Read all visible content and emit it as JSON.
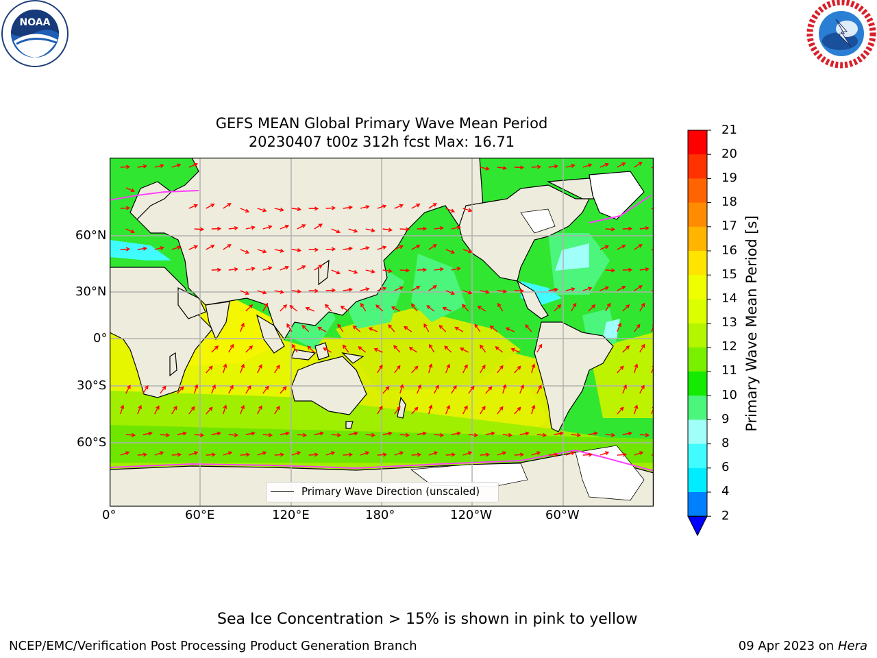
{
  "title": {
    "line1": "GEFS MEAN Global Primary Wave Mean Period",
    "line2": "20230407 t00z 312h fcst   Max: 16.71"
  },
  "logos": {
    "left": {
      "icon": "noaa-logo",
      "text": "NOAA"
    },
    "right": {
      "icon": "nws-logo"
    }
  },
  "map": {
    "ocean_color": "#31e631",
    "land_color": "#eeecdc",
    "ice_color": "#ffffff",
    "x_ticks": [
      "0°",
      "60°E",
      "120°E",
      "180°",
      "120°W",
      "60°W"
    ],
    "y_ticks": [
      "60°N",
      "30°N",
      "0°",
      "30°S",
      "60°S"
    ],
    "arrow_color": "#ff0000",
    "legend": "Primary Wave Direction (unscaled)"
  },
  "colorbar": {
    "label": "Primary Wave Mean Period [s]",
    "ticks": [
      "21",
      "20",
      "19",
      "18",
      "17",
      "16",
      "15",
      "14",
      "13",
      "12",
      "11",
      "10",
      "9",
      "8",
      "6",
      "4",
      "2"
    ],
    "colors": [
      "#ff0000",
      "#ff3200",
      "#ff6400",
      "#ff8c00",
      "#ffb400",
      "#ffe400",
      "#f0ff00",
      "#dcff00",
      "#b4f500",
      "#78f000",
      "#14eb00",
      "#4cf57c",
      "#a0fff8",
      "#40fcff",
      "#00ecff",
      "#0080ff"
    ],
    "extend_color": "#0000ff"
  },
  "chart_data": {
    "type": "heatmap",
    "title": "GEFS MEAN Global Primary Wave Mean Period",
    "subtitle": "20230407 t00z 312h fcst   Max: 16.71",
    "variable": "Primary Wave Mean Period",
    "unit": "s",
    "max": 16.71,
    "colorbar_levels": [
      2,
      4,
      6,
      8,
      9,
      10,
      11,
      12,
      13,
      14,
      15,
      16,
      17,
      18,
      19,
      20,
      21
    ],
    "x_ticks": [
      "0°",
      "60°E",
      "120°E",
      "180°",
      "120°W",
      "60°W"
    ],
    "y_ticks": [
      "60°N",
      "30°N",
      "0°",
      "30°S",
      "60°S"
    ],
    "legend": [
      "Primary Wave Direction (unscaled)"
    ]
  },
  "footer": {
    "note": "Sea Ice Concentration > 15% is shown in pink to yellow",
    "left": "NCEP/EMC/Verification Post Processing Product Generation Branch",
    "date": "09 Apr 2023 on",
    "machine": "Hera"
  }
}
